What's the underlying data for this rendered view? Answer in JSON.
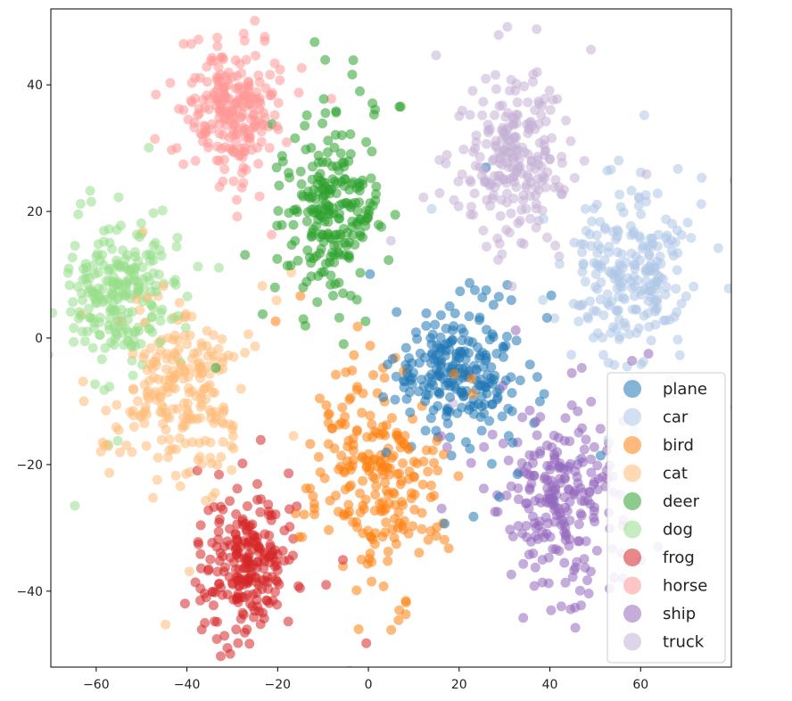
{
  "chart_data": {
    "type": "scatter",
    "title": "",
    "xlabel": "",
    "ylabel": "",
    "xlim": [
      -70,
      80
    ],
    "ylim": [
      -52,
      52
    ],
    "xticks": [
      -60,
      -40,
      -20,
      0,
      20,
      40,
      60
    ],
    "yticks": [
      -40,
      -20,
      0,
      20,
      40
    ],
    "tick_labels": {
      "x": [
        "−60",
        "−40",
        "−20",
        "0",
        "20",
        "40",
        "60"
      ],
      "y": [
        "−40",
        "−20",
        "0",
        "20",
        "40"
      ]
    },
    "grid": false,
    "legend_position": "lower-right",
    "marker_opacity": 0.55,
    "series": [
      {
        "name": "plane",
        "color": "#1f77b4",
        "center": [
          20,
          -5
        ],
        "spread": [
          9,
          7
        ],
        "n": 240
      },
      {
        "name": "car",
        "color": "#aec7e8",
        "center": [
          58,
          10
        ],
        "spread": [
          9,
          8
        ],
        "n": 240
      },
      {
        "name": "bird",
        "color": "#ff7f0e",
        "center": [
          2,
          -22
        ],
        "spread": [
          9,
          11
        ],
        "n": 240
      },
      {
        "name": "cat",
        "color": "#ffbb78",
        "center": [
          -42,
          -8
        ],
        "spread": [
          10,
          9
        ],
        "n": 240
      },
      {
        "name": "deer",
        "color": "#2ca02c",
        "center": [
          -8,
          20
        ],
        "spread": [
          7,
          9
        ],
        "n": 240
      },
      {
        "name": "dog",
        "color": "#98df8a",
        "center": [
          -55,
          7
        ],
        "spread": [
          7,
          7
        ],
        "n": 240
      },
      {
        "name": "frog",
        "color": "#d62728",
        "center": [
          -27,
          -36
        ],
        "spread": [
          7,
          7
        ],
        "n": 240
      },
      {
        "name": "horse",
        "color": "#ff9896",
        "center": [
          -30,
          36
        ],
        "spread": [
          7,
          7
        ],
        "n": 240
      },
      {
        "name": "ship",
        "color": "#9467bd",
        "center": [
          42,
          -26
        ],
        "spread": [
          9,
          9
        ],
        "n": 240
      },
      {
        "name": "truck",
        "color": "#c5b0d5",
        "center": [
          32,
          28
        ],
        "spread": [
          7,
          8
        ],
        "n": 240
      }
    ]
  }
}
